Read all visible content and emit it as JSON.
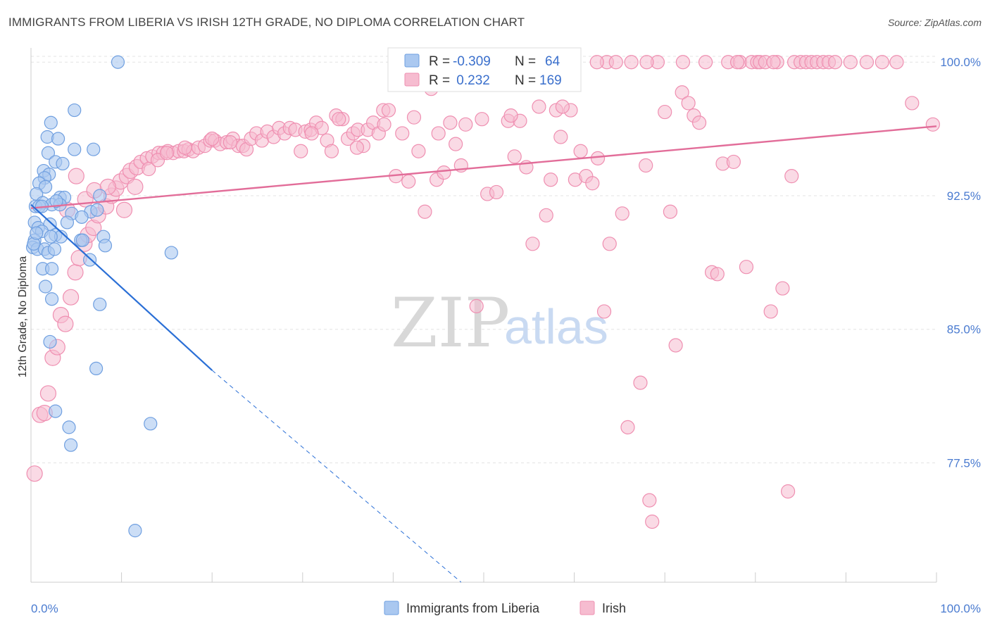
{
  "title": "IMMIGRANTS FROM LIBERIA VS IRISH 12TH GRADE, NO DIPLOMA CORRELATION CHART",
  "source": "Source: ZipAtlas.com",
  "watermark": {
    "zip": "ZIP",
    "atlas": "atlas"
  },
  "colors": {
    "blue_fill": "#aac8f0",
    "blue_stroke": "#6f9fe0",
    "blue_line": "#2a6fd6",
    "pink_fill": "#f6bcd0",
    "pink_stroke": "#ef8fb1",
    "pink_line": "#e26d99",
    "tick_text": "#4a7bd0",
    "grid": "#e3e3e3"
  },
  "legend": {
    "rows": [
      {
        "r_label": "R =",
        "r_value": "-0.309",
        "n_label": "N =",
        "n_value": "64"
      },
      {
        "r_label": "R =",
        "r_value": " 0.232",
        "n_label": "N =",
        "n_value": "169"
      }
    ]
  },
  "bottom_legend": [
    "Immigrants from Liberia",
    "Irish"
  ],
  "chart_data": {
    "type": "scatter",
    "title": "IMMIGRANTS FROM LIBERIA VS IRISH 12TH GRADE, NO DIPLOMA CORRELATION CHART",
    "xlabel": "",
    "ylabel": "12th Grade, No Diploma",
    "xlim": [
      0,
      100
    ],
    "ylim": [
      70.8,
      100.8
    ],
    "x_tick_labels": [
      "0.0%",
      "100.0%"
    ],
    "y_ticks": [
      77.5,
      85.0,
      92.5,
      100.0
    ],
    "y_tick_labels": [
      "77.5%",
      "85.0%",
      "92.5%",
      "100.0%"
    ],
    "grid": true,
    "legend_position": "top-center",
    "series": [
      {
        "name": "Immigrants from Liberia",
        "R": -0.309,
        "N": 64,
        "trend": {
          "x": [
            0.0,
            20.0
          ],
          "y": [
            92.0,
            82.7
          ],
          "dashed_to": [
            47.5,
            70.8
          ]
        },
        "points": [
          [
            9.6,
            100.0
          ],
          [
            4.8,
            97.3
          ],
          [
            2.2,
            96.6
          ],
          [
            1.8,
            95.8
          ],
          [
            3.0,
            95.7
          ],
          [
            4.8,
            95.1
          ],
          [
            6.9,
            95.1
          ],
          [
            1.9,
            94.9
          ],
          [
            2.7,
            94.4
          ],
          [
            3.5,
            94.3
          ],
          [
            1.4,
            93.9
          ],
          [
            2.0,
            93.7
          ],
          [
            1.5,
            93.5
          ],
          [
            0.9,
            93.2
          ],
          [
            1.6,
            93.0
          ],
          [
            0.6,
            92.6
          ],
          [
            3.2,
            92.4
          ],
          [
            3.7,
            92.4
          ],
          [
            7.6,
            92.5
          ],
          [
            1.3,
            92.1
          ],
          [
            2.3,
            92.0
          ],
          [
            3.2,
            92.0
          ],
          [
            0.5,
            91.9
          ],
          [
            0.9,
            91.9
          ],
          [
            1.2,
            91.9
          ],
          [
            6.6,
            91.6
          ],
          [
            4.5,
            91.5
          ],
          [
            7.3,
            91.7
          ],
          [
            5.6,
            91.3
          ],
          [
            0.4,
            91.0
          ],
          [
            2.1,
            90.9
          ],
          [
            4.0,
            91.0
          ],
          [
            0.8,
            90.7
          ],
          [
            1.2,
            90.5
          ],
          [
            2.7,
            90.3
          ],
          [
            3.3,
            90.2
          ],
          [
            2.2,
            90.2
          ],
          [
            8.0,
            90.2
          ],
          [
            0.4,
            90.0
          ],
          [
            5.5,
            90.0
          ],
          [
            5.7,
            90.0
          ],
          [
            0.2,
            89.6
          ],
          [
            0.7,
            89.5
          ],
          [
            1.5,
            89.5
          ],
          [
            1.9,
            89.3
          ],
          [
            2.6,
            89.5
          ],
          [
            8.2,
            89.7
          ],
          [
            15.5,
            89.3
          ],
          [
            6.5,
            88.9
          ],
          [
            1.3,
            88.4
          ],
          [
            2.3,
            88.4
          ],
          [
            1.6,
            87.4
          ],
          [
            2.3,
            86.7
          ],
          [
            7.6,
            86.4
          ],
          [
            2.1,
            84.3
          ],
          [
            7.2,
            82.8
          ],
          [
            2.7,
            80.4
          ],
          [
            4.2,
            79.5
          ],
          [
            13.2,
            79.7
          ],
          [
            4.4,
            78.5
          ],
          [
            11.5,
            73.7
          ],
          [
            0.3,
            89.8
          ],
          [
            0.6,
            90.4
          ],
          [
            2.8,
            92.2
          ]
        ]
      },
      {
        "name": "Irish",
        "R": 0.232,
        "N": 169,
        "trend": {
          "x": [
            0.0,
            100.0
          ],
          "y": [
            91.8,
            96.4
          ]
        },
        "points": [
          [
            0.4,
            76.9
          ],
          [
            1.0,
            80.2
          ],
          [
            1.5,
            80.3
          ],
          [
            1.9,
            81.4
          ],
          [
            2.4,
            83.4
          ],
          [
            2.9,
            84.0
          ],
          [
            3.3,
            85.8
          ],
          [
            3.8,
            85.3
          ],
          [
            4.4,
            86.8
          ],
          [
            4.9,
            88.2
          ],
          [
            5.3,
            89.0
          ],
          [
            5.9,
            89.8
          ],
          [
            6.3,
            90.3
          ],
          [
            6.9,
            90.7
          ],
          [
            7.4,
            91.4
          ],
          [
            8.3,
            91.9
          ],
          [
            8.9,
            92.5
          ],
          [
            9.4,
            92.9
          ],
          [
            9.9,
            93.3
          ],
          [
            10.6,
            93.6
          ],
          [
            11.0,
            93.9
          ],
          [
            11.7,
            94.1
          ],
          [
            12.1,
            94.4
          ],
          [
            12.8,
            94.6
          ],
          [
            13.4,
            94.7
          ],
          [
            14.1,
            94.9
          ],
          [
            14.6,
            94.9
          ],
          [
            15.1,
            95.0
          ],
          [
            15.7,
            94.9
          ],
          [
            16.3,
            95.0
          ],
          [
            16.9,
            95.0
          ],
          [
            17.4,
            95.1
          ],
          [
            17.9,
            95.0
          ],
          [
            18.5,
            95.2
          ],
          [
            19.2,
            95.3
          ],
          [
            19.8,
            95.6
          ],
          [
            20.3,
            95.6
          ],
          [
            20.9,
            95.4
          ],
          [
            21.6,
            95.5
          ],
          [
            22.3,
            95.7
          ],
          [
            22.9,
            95.3
          ],
          [
            23.4,
            95.3
          ],
          [
            23.8,
            95.1
          ],
          [
            24.3,
            95.7
          ],
          [
            24.9,
            96.0
          ],
          [
            25.5,
            95.6
          ],
          [
            26.1,
            96.1
          ],
          [
            26.8,
            95.8
          ],
          [
            27.4,
            96.3
          ],
          [
            28.0,
            96.0
          ],
          [
            28.6,
            96.3
          ],
          [
            29.2,
            96.2
          ],
          [
            29.8,
            95.0
          ],
          [
            30.3,
            96.1
          ],
          [
            30.9,
            96.2
          ],
          [
            31.5,
            96.6
          ],
          [
            32.1,
            96.3
          ],
          [
            32.7,
            95.6
          ],
          [
            33.2,
            95.0
          ],
          [
            33.7,
            97.0
          ],
          [
            34.4,
            96.8
          ],
          [
            35.0,
            95.7
          ],
          [
            35.6,
            96.0
          ],
          [
            36.1,
            96.2
          ],
          [
            36.7,
            95.3
          ],
          [
            37.2,
            96.2
          ],
          [
            37.8,
            96.6
          ],
          [
            38.4,
            96.0
          ],
          [
            38.9,
            97.3
          ],
          [
            39.5,
            97.3
          ],
          [
            40.3,
            93.6
          ],
          [
            41.0,
            96.0
          ],
          [
            41.7,
            93.3
          ],
          [
            42.3,
            96.9
          ],
          [
            42.8,
            95.0
          ],
          [
            43.5,
            91.6
          ],
          [
            44.2,
            98.5
          ],
          [
            44.8,
            93.4
          ],
          [
            45.6,
            93.8
          ],
          [
            46.3,
            96.6
          ],
          [
            46.9,
            95.4
          ],
          [
            47.5,
            94.2
          ],
          [
            48.0,
            96.5
          ],
          [
            49.2,
            86.3
          ],
          [
            49.8,
            96.8
          ],
          [
            50.4,
            92.6
          ],
          [
            51.4,
            92.7
          ],
          [
            52.7,
            96.7
          ],
          [
            53.4,
            94.7
          ],
          [
            54.0,
            96.7
          ],
          [
            54.7,
            94.1
          ],
          [
            55.4,
            89.8
          ],
          [
            56.1,
            97.5
          ],
          [
            56.9,
            91.4
          ],
          [
            57.4,
            93.4
          ],
          [
            58.0,
            97.3
          ],
          [
            58.5,
            95.8
          ],
          [
            59.4,
            99.9
          ],
          [
            59.6,
            97.3
          ],
          [
            60.1,
            93.4
          ],
          [
            60.7,
            95.0
          ],
          [
            61.3,
            93.6
          ],
          [
            62.0,
            93.2
          ],
          [
            62.6,
            94.6
          ],
          [
            63.3,
            86.0
          ],
          [
            63.6,
            100.0
          ],
          [
            63.9,
            89.8
          ],
          [
            64.6,
            100.0
          ],
          [
            65.3,
            91.5
          ],
          [
            65.9,
            79.5
          ],
          [
            66.3,
            100.0
          ],
          [
            67.3,
            82.0
          ],
          [
            67.9,
            94.2
          ],
          [
            68.3,
            75.4
          ],
          [
            68.6,
            74.2
          ],
          [
            69.2,
            100.0
          ],
          [
            70.0,
            97.2
          ],
          [
            70.6,
            91.6
          ],
          [
            71.2,
            84.1
          ],
          [
            71.9,
            98.3
          ],
          [
            72.6,
            97.7
          ],
          [
            73.2,
            97.0
          ],
          [
            73.8,
            96.6
          ],
          [
            74.5,
            100.0
          ],
          [
            75.2,
            88.2
          ],
          [
            75.8,
            88.1
          ],
          [
            76.4,
            94.3
          ],
          [
            77.0,
            100.0
          ],
          [
            77.6,
            94.4
          ],
          [
            78.3,
            100.0
          ],
          [
            79.0,
            88.5
          ],
          [
            79.6,
            100.0
          ],
          [
            80.2,
            100.0
          ],
          [
            80.5,
            100.0
          ],
          [
            81.1,
            100.0
          ],
          [
            81.7,
            86.0
          ],
          [
            82.4,
            100.0
          ],
          [
            83.0,
            87.3
          ],
          [
            83.6,
            75.9
          ],
          [
            84.3,
            100.0
          ],
          [
            85.0,
            100.0
          ],
          [
            85.6,
            100.0
          ],
          [
            86.2,
            100.0
          ],
          [
            86.8,
            100.0
          ],
          [
            87.5,
            100.0
          ],
          [
            88.1,
            100.0
          ],
          [
            88.8,
            100.0
          ],
          [
            90.5,
            100.0
          ],
          [
            92.3,
            100.0
          ],
          [
            94.0,
            100.0
          ],
          [
            95.6,
            100.0
          ],
          [
            97.3,
            97.7
          ],
          [
            99.6,
            96.5
          ],
          [
            4.0,
            91.7
          ],
          [
            5.0,
            93.6
          ],
          [
            6.0,
            92.3
          ],
          [
            7.0,
            92.8
          ],
          [
            8.5,
            93.0
          ],
          [
            10.3,
            91.7
          ],
          [
            11.5,
            93.0
          ],
          [
            13.0,
            94.0
          ],
          [
            14.0,
            94.5
          ],
          [
            15.0,
            94.9
          ],
          [
            17.0,
            95.2
          ],
          [
            20.0,
            95.7
          ],
          [
            22.0,
            95.5
          ],
          [
            31.0,
            96.0
          ],
          [
            34.0,
            96.8
          ],
          [
            36.0,
            95.2
          ],
          [
            39.0,
            96.5
          ],
          [
            45.0,
            96.0
          ],
          [
            53.0,
            97.0
          ],
          [
            58.7,
            97.5
          ],
          [
            62.5,
            100.0
          ],
          [
            68.0,
            100.0
          ],
          [
            72.0,
            100.0
          ],
          [
            78.0,
            100.0
          ],
          [
            82.0,
            100.0
          ],
          [
            84.0,
            93.6
          ]
        ]
      }
    ]
  }
}
